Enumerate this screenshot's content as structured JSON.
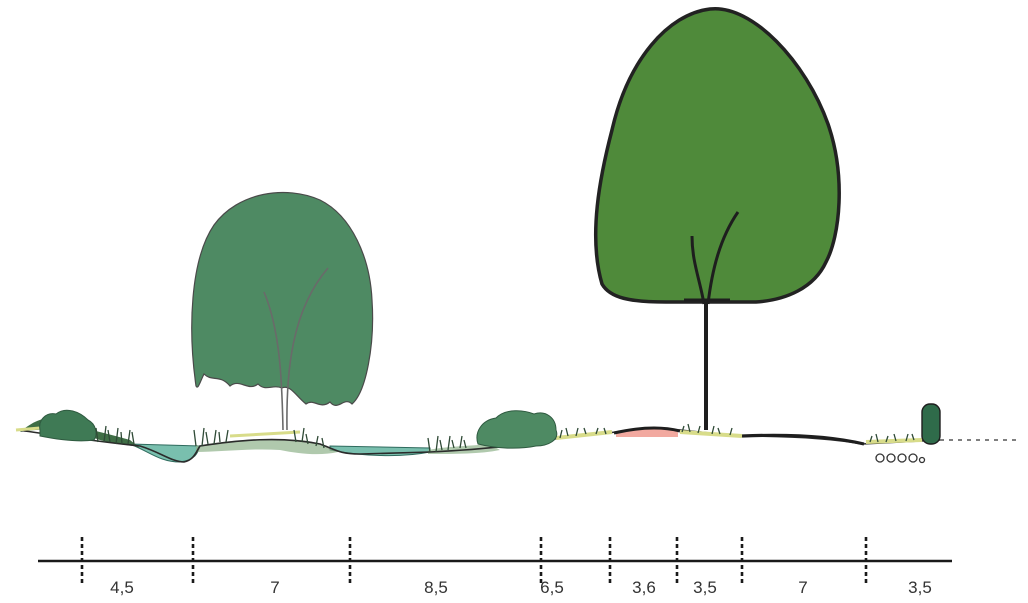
{
  "section": {
    "dimensions": [
      "4,5",
      "7",
      "8,5",
      "6,5",
      "3,6",
      "3,5",
      "7",
      "3,5"
    ]
  },
  "colors": {
    "tree_small": "#4e8a63",
    "tree_large": "#4f8a3a",
    "water": "#79bfae",
    "ground_line": "#2b2b2b",
    "grass": "#3f6e45",
    "yellow_grass": "#d8dc8a",
    "pink_path": "#f2a9a0"
  }
}
